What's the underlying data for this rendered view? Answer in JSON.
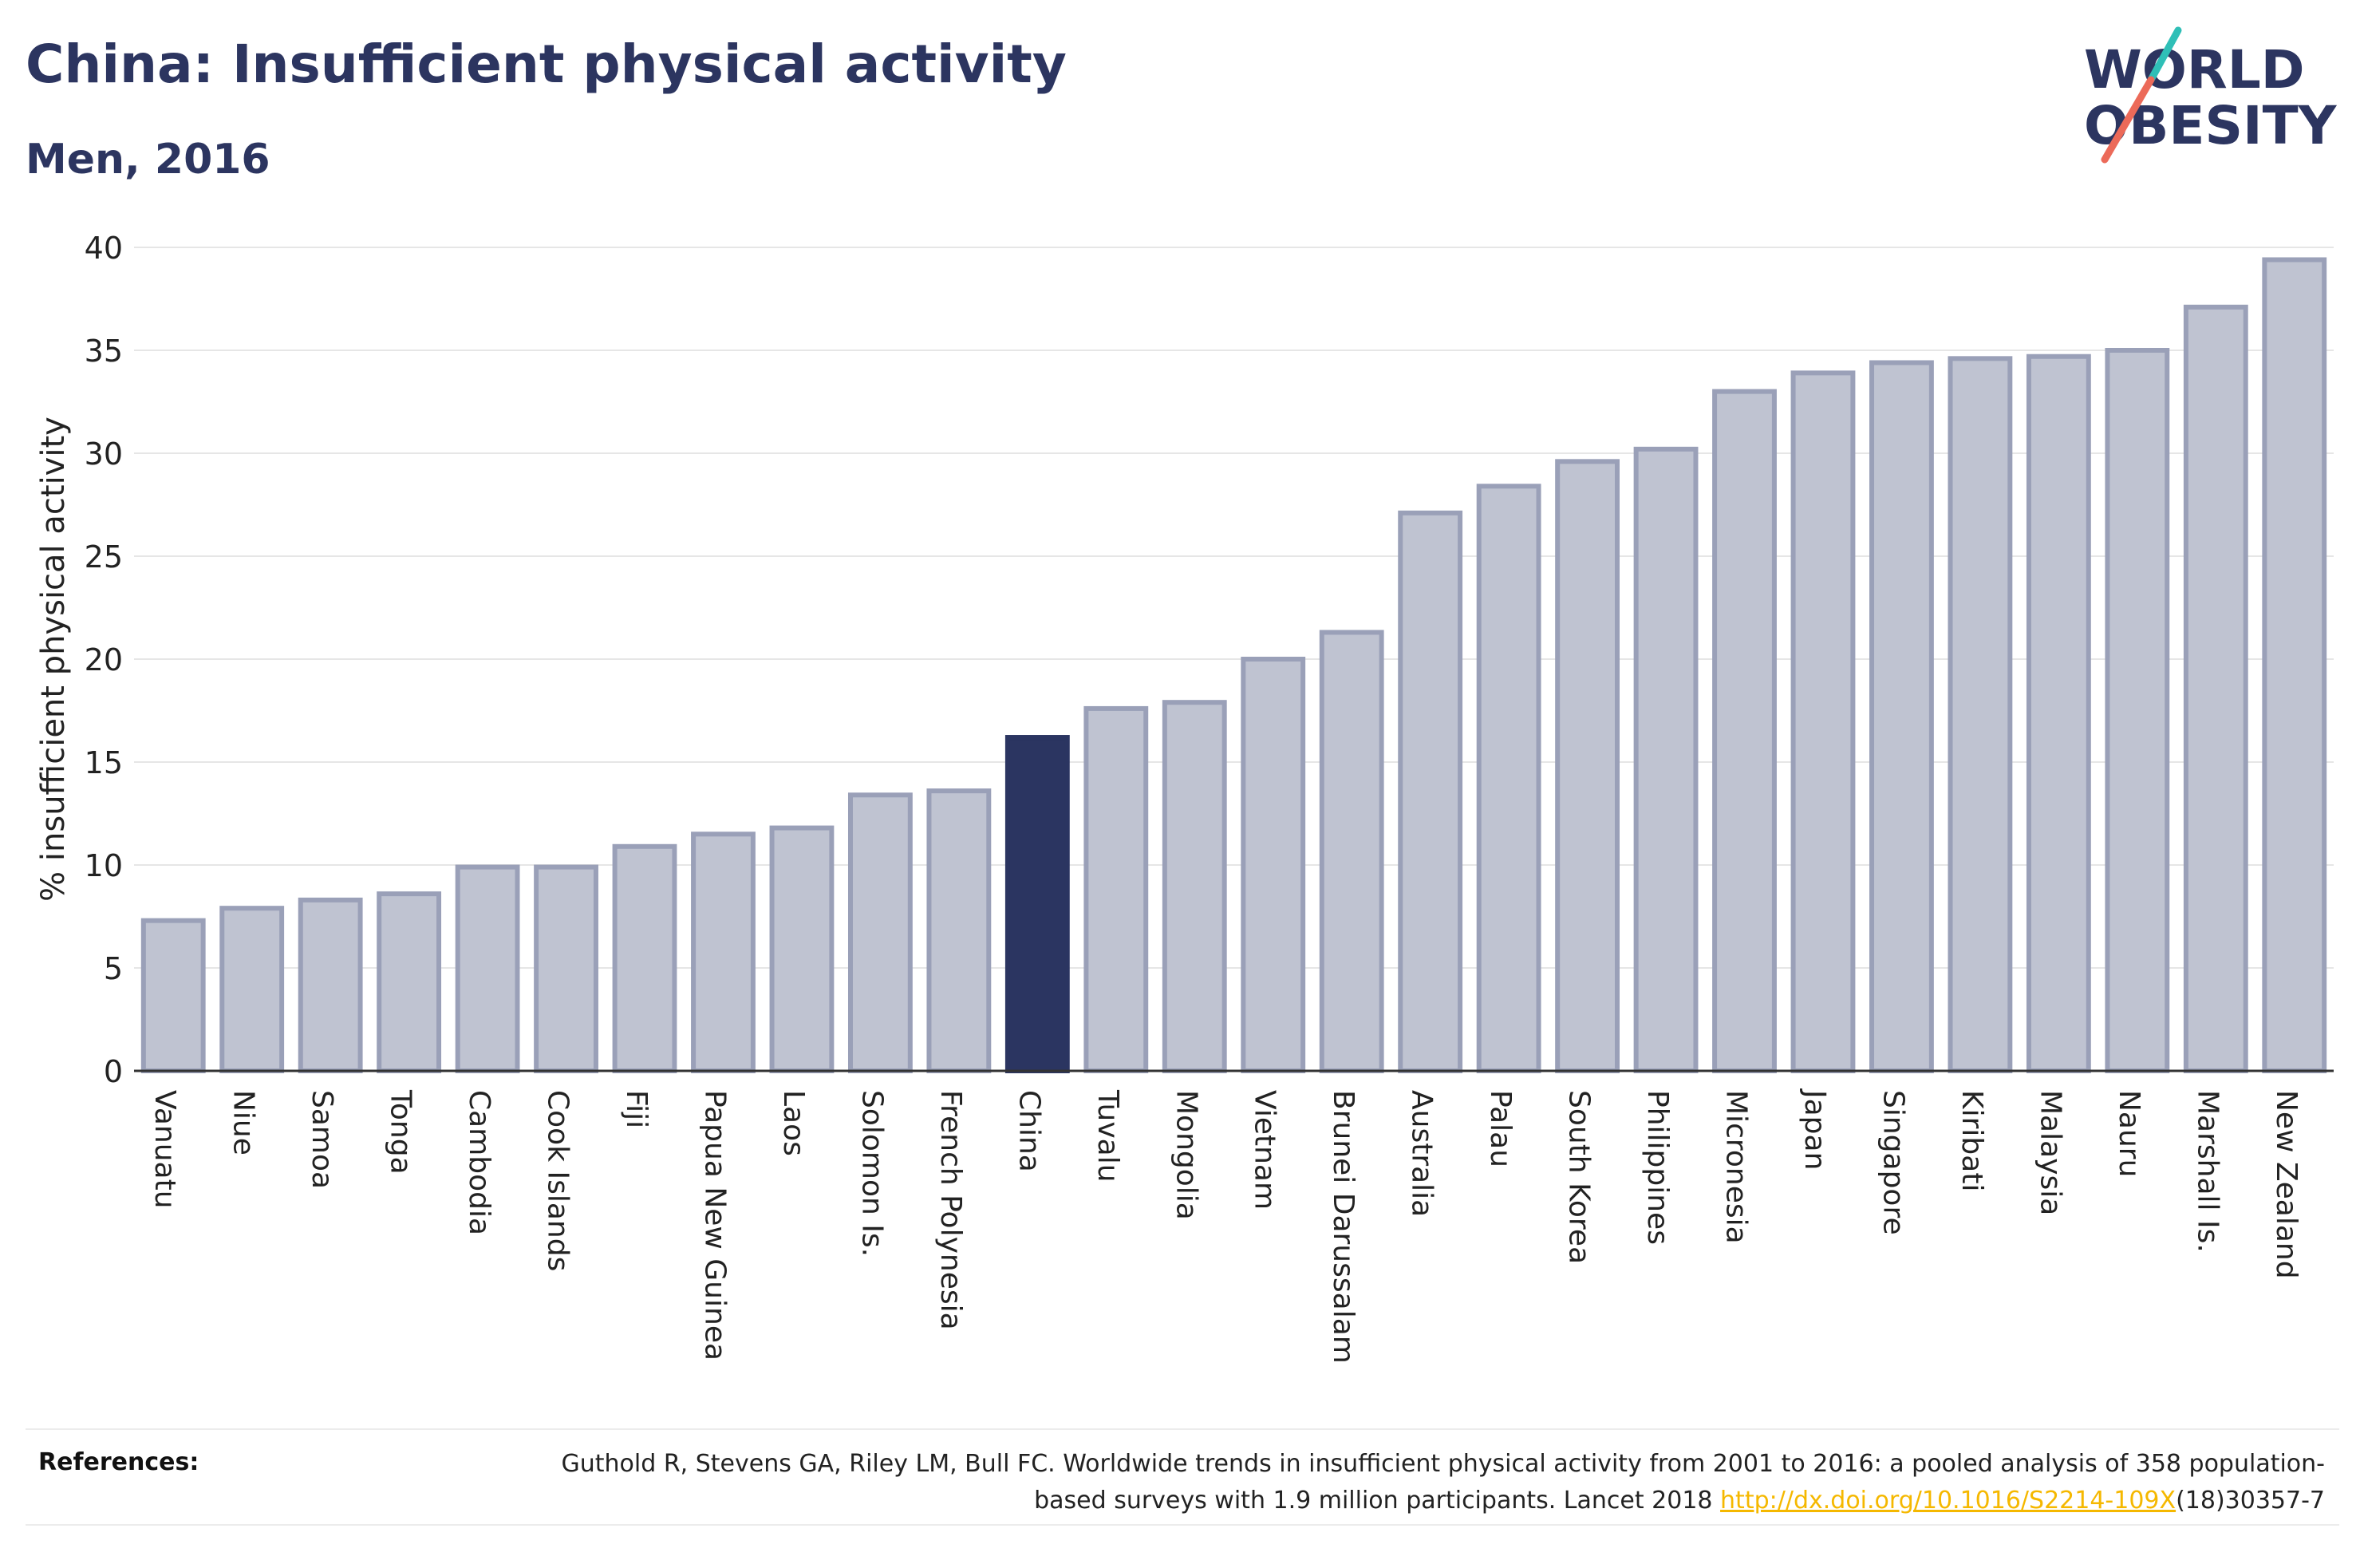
{
  "header": {
    "title": "China: Insufficient physical activity",
    "subtitle": "Men, 2016"
  },
  "logo": {
    "line1": "WORLD",
    "line2": "OBESITY",
    "colors": {
      "text": "#2c3560",
      "stroke_teal": "#2fbfb7",
      "stroke_coral": "#ec6a59"
    }
  },
  "chart_data": {
    "type": "bar",
    "title": "China: Insufficient physical activity",
    "subtitle": "Men, 2016",
    "xlabel": "",
    "ylabel": "% insufficient physical activity",
    "ylim": [
      0,
      40
    ],
    "yticks": [
      0,
      5,
      10,
      15,
      20,
      25,
      30,
      35,
      40
    ],
    "grid": true,
    "highlight": "China",
    "colors": {
      "bar_fill": "#bfc3d1",
      "bar_stroke": "#9aa0b8",
      "highlight": "#2b3561",
      "grid": "#e6e6e6",
      "axis": "#333333"
    },
    "categories": [
      "Vanuatu",
      "Niue",
      "Samoa",
      "Tonga",
      "Cambodia",
      "Cook Islands",
      "Fiji",
      "Papua New Guinea",
      "Laos",
      "Solomon Is.",
      "French Polynesia",
      "China",
      "Tuvalu",
      "Mongolia",
      "Vietnam",
      "Brunei Darussalam",
      "Australia",
      "Palau",
      "South Korea",
      "Philippines",
      "Micronesia",
      "Japan",
      "Singapore",
      "Kiribati",
      "Malaysia",
      "Nauru",
      "Marshall Is.",
      "New Zealand"
    ],
    "values": [
      7.3,
      7.9,
      8.3,
      8.6,
      9.9,
      9.9,
      10.9,
      11.5,
      11.8,
      13.4,
      13.6,
      16.2,
      17.6,
      17.9,
      20.0,
      21.3,
      27.1,
      28.4,
      29.6,
      30.2,
      33.0,
      33.9,
      34.4,
      34.6,
      34.7,
      35.0,
      37.1,
      39.4
    ]
  },
  "references": {
    "label": "References:",
    "text_before": "Guthold R, Stevens GA, Riley LM, Bull FC. Worldwide trends in insufficient physical activity from 2001 to 2016: a pooled analysis of 358 population-based surveys with 1.9 million participants. Lancet 2018 ",
    "link_text": "http://dx.doi.org/10.1016/S2214-109X",
    "text_after": "(18)30357-7"
  }
}
